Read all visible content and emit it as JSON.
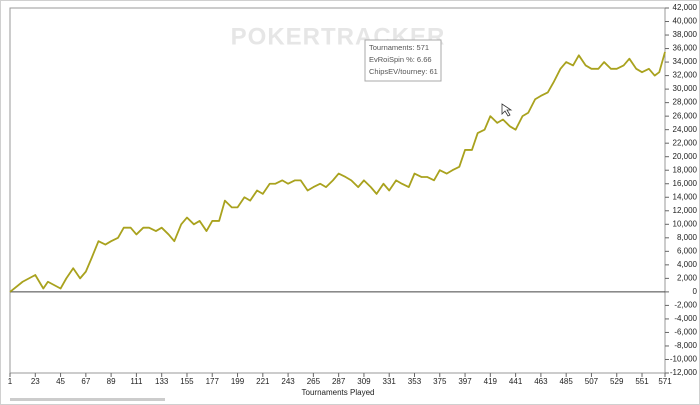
{
  "chart_data": {
    "type": "line",
    "watermark": "POKERTRACKER",
    "x_label": "Tournaments Played",
    "tooltip": [
      "Tournaments: 571",
      "EvRoiSpin %: 6.66",
      "ChipsEV/tourney: 61"
    ],
    "xlim": [
      1,
      571
    ],
    "xticks": [
      1,
      23,
      45,
      67,
      89,
      111,
      133,
      155,
      177,
      199,
      221,
      243,
      265,
      287,
      309,
      331,
      353,
      375,
      397,
      419,
      441,
      463,
      485,
      507,
      529,
      551,
      571
    ],
    "ylim": [
      -12000,
      42000
    ],
    "yticks": [
      {
        "value": -12000,
        "label": "-12,000"
      },
      {
        "value": -10000,
        "label": "-10,000"
      },
      {
        "value": -8000,
        "label": "-8,000"
      },
      {
        "value": -6000,
        "label": "-6,000"
      },
      {
        "value": -4000,
        "label": "-4,000"
      },
      {
        "value": -2000,
        "label": "-2,000"
      },
      0,
      {
        "value": 2000,
        "label": "2,000"
      },
      {
        "value": 4000,
        "label": "4,000"
      },
      {
        "value": 6000,
        "label": "6,000"
      },
      {
        "value": 8000,
        "label": "8,000"
      },
      {
        "value": 10000,
        "label": "10,000"
      },
      {
        "value": 12000,
        "label": "12,000"
      },
      {
        "value": 14000,
        "label": "14,000"
      },
      {
        "value": 16000,
        "label": "16,000"
      },
      {
        "value": 18000,
        "label": "18,000"
      },
      {
        "value": 20000,
        "label": "20,000"
      },
      {
        "value": 22000,
        "label": "22,000"
      },
      {
        "value": 24000,
        "label": "24,000"
      },
      {
        "value": 26000,
        "label": "26,000"
      },
      {
        "value": 28000,
        "label": "28,000"
      },
      {
        "value": 30000,
        "label": "30,000"
      },
      {
        "value": 32000,
        "label": "32,000"
      },
      {
        "value": 34000,
        "label": "34,000"
      },
      {
        "value": 36000,
        "label": "36,000"
      },
      {
        "value": 38000,
        "label": "38,000"
      },
      {
        "value": 40000,
        "label": "40,000"
      },
      {
        "value": 42000,
        "label": "42,000"
      }
    ],
    "color": "#a9a21e",
    "x": [
      1,
      12,
      23,
      30,
      34,
      45,
      50,
      56,
      62,
      67,
      72,
      78,
      84,
      89,
      95,
      100,
      106,
      111,
      117,
      122,
      128,
      133,
      139,
      144,
      150,
      155,
      161,
      166,
      172,
      177,
      183,
      188,
      194,
      199,
      205,
      210,
      216,
      221,
      227,
      232,
      238,
      243,
      249,
      254,
      260,
      265,
      271,
      276,
      282,
      287,
      293,
      298,
      304,
      309,
      315,
      320,
      326,
      331,
      337,
      342,
      348,
      353,
      359,
      364,
      370,
      375,
      381,
      386,
      392,
      397,
      403,
      408,
      414,
      419,
      425,
      430,
      436,
      441,
      447,
      452,
      458,
      463,
      469,
      474,
      480,
      485,
      491,
      496,
      502,
      507,
      513,
      518,
      524,
      529,
      535,
      540,
      546,
      551,
      557,
      562,
      566,
      571
    ],
    "values": [
      0,
      1500,
      2500,
      500,
      1500,
      500,
      2000,
      3500,
      2000,
      3000,
      5000,
      7500,
      7000,
      7500,
      8000,
      9500,
      9500,
      8500,
      9500,
      9500,
      9000,
      9500,
      8500,
      7500,
      10000,
      11000,
      10000,
      10500,
      9000,
      10500,
      10500,
      13500,
      12500,
      12500,
      14000,
      13500,
      15000,
      14500,
      16000,
      16000,
      16500,
      16000,
      16500,
      16500,
      15000,
      15500,
      16000,
      15500,
      16500,
      17500,
      17000,
      16500,
      15500,
      16500,
      15500,
      14500,
      16000,
      15000,
      16500,
      16000,
      15500,
      17500,
      17000,
      17000,
      16500,
      18000,
      17500,
      18000,
      18500,
      21000,
      21000,
      23500,
      24000,
      26000,
      25000,
      25500,
      24500,
      24000,
      26000,
      26500,
      28500,
      29000,
      29500,
      31000,
      33000,
      34000,
      33500,
      35000,
      33500,
      33000,
      33000,
      34000,
      33000,
      33000,
      33500,
      34500,
      33000,
      32500,
      33000,
      32000,
      32500,
      35500
    ]
  }
}
